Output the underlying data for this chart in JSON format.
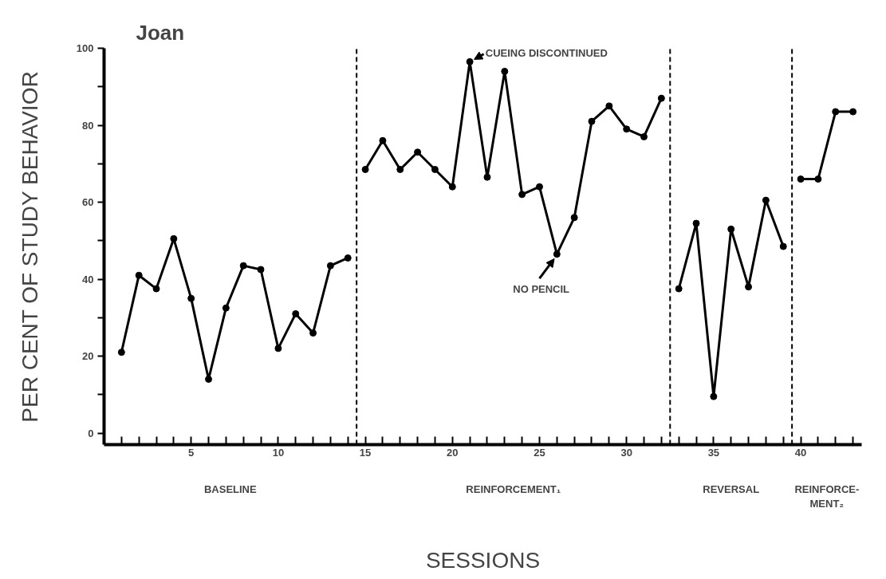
{
  "chart_data": {
    "type": "line",
    "title": "Joan",
    "xlabel": "SESSIONS",
    "ylabel": "PER CENT OF STUDY BEHAVIOR",
    "series": [
      {
        "color": "#000000",
        "x": [
          1,
          2,
          3,
          4,
          5,
          6,
          7,
          8,
          9,
          10,
          11,
          12,
          13,
          14
        ],
        "values": [
          21,
          41,
          37.5,
          50.5,
          35,
          14,
          32.5,
          43.5,
          42.5,
          22,
          31,
          26,
          43.5,
          45.5
        ]
      },
      {
        "color": "#000000",
        "x": [
          15,
          16,
          17,
          18,
          19,
          20,
          21,
          22,
          23,
          24,
          25,
          26,
          27,
          28,
          29,
          30,
          31,
          32
        ],
        "values": [
          68.5,
          76,
          68.5,
          73,
          68.5,
          64,
          96.5,
          66.5,
          94,
          62,
          64,
          46.5,
          56,
          81,
          85,
          79,
          77,
          87
        ]
      },
      {
        "color": "#000000",
        "x": [
          33,
          34,
          35,
          36,
          37,
          38,
          39
        ],
        "values": [
          37.5,
          54.5,
          9.5,
          53,
          38,
          60.5,
          48.5
        ]
      },
      {
        "color": "#000000",
        "x": [
          40,
          41,
          42,
          43
        ],
        "values": [
          66,
          66,
          83.5,
          83.5
        ]
      }
    ],
    "ref_lines": [
      {
        "axis": "x",
        "value": 14.5,
        "color": "#000000",
        "line_style": "dashed"
      },
      {
        "axis": "x",
        "value": 32.5,
        "color": "#000000",
        "line_style": "dashed"
      },
      {
        "axis": "x",
        "value": 39.5,
        "color": "#000000",
        "line_style": "dashed"
      }
    ],
    "annotations": [
      {
        "text": "CUEING DISCONTINUED",
        "x": 21,
        "y": 96.5
      },
      {
        "text": "NO PENCIL",
        "x": 26,
        "y": 46.5
      },
      "BASELINE",
      "REINFORCEMENT₁",
      "REVERSAL",
      "REINFORCE-\nMENT₂"
    ],
    "xlim": [
      0,
      43.5
    ],
    "ylim": [
      -3,
      100
    ],
    "xticks": [
      {
        "value": 1,
        "label": null
      },
      {
        "value": 2,
        "label": null
      },
      {
        "value": 3,
        "label": null
      },
      {
        "value": 4,
        "label": null
      },
      5,
      {
        "value": 6,
        "label": null
      },
      {
        "value": 7,
        "label": null
      },
      {
        "value": 8,
        "label": null
      },
      {
        "value": 9,
        "label": null
      },
      10,
      {
        "value": 11,
        "label": null
      },
      {
        "value": 12,
        "label": null
      },
      {
        "value": 13,
        "label": null
      },
      {
        "value": 14,
        "label": null
      },
      15,
      {
        "value": 16,
        "label": null
      },
      {
        "value": 17,
        "label": null
      },
      {
        "value": 18,
        "label": null
      },
      {
        "value": 19,
        "label": null
      },
      20,
      {
        "value": 21,
        "label": null
      },
      {
        "value": 22,
        "label": null
      },
      {
        "value": 23,
        "label": null
      },
      {
        "value": 24,
        "label": null
      },
      25,
      {
        "value": 26,
        "label": null
      },
      {
        "value": 27,
        "label": null
      },
      {
        "value": 28,
        "label": null
      },
      {
        "value": 29,
        "label": null
      },
      30,
      {
        "value": 31,
        "label": null
      },
      {
        "value": 32,
        "label": null
      },
      {
        "value": 33,
        "label": null
      },
      {
        "value": 34,
        "label": null
      },
      35,
      {
        "value": 36,
        "label": null
      },
      {
        "value": 37,
        "label": null
      },
      {
        "value": 38,
        "label": null
      },
      {
        "value": 39,
        "label": null
      },
      40,
      {
        "value": 41,
        "label": null
      },
      {
        "value": 42,
        "label": null
      },
      {
        "value": 43,
        "label": null
      }
    ],
    "yticks": [
      0,
      {
        "value": 10,
        "label": null
      },
      20,
      {
        "value": 30,
        "label": null
      },
      40,
      {
        "value": 50,
        "label": null
      },
      60,
      {
        "value": 70,
        "label": null
      },
      80,
      {
        "value": 90,
        "label": null
      },
      100
    ],
    "grid": false,
    "marker": "circle",
    "line_style": "solid"
  }
}
